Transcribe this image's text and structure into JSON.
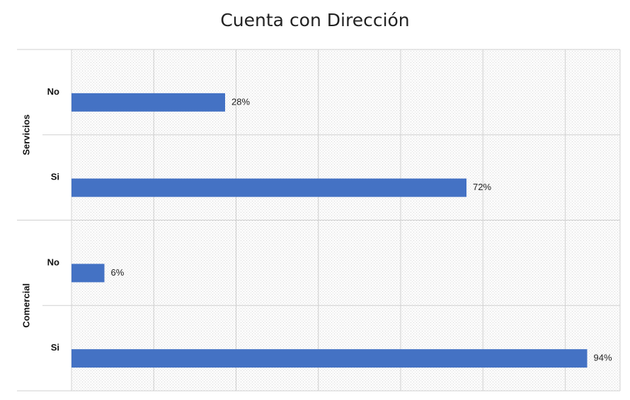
{
  "chart_data": {
    "type": "bar",
    "orientation": "horizontal",
    "title": "Cuenta con Dirección",
    "xlim": [
      0,
      100
    ],
    "grid": true,
    "bar_color": "#4472C4",
    "groups": [
      {
        "name": "Servicios",
        "items": [
          {
            "category": "No",
            "value": 28,
            "label": "28%"
          },
          {
            "category": "Si",
            "value": 72,
            "label": "72%"
          }
        ]
      },
      {
        "name": "Comercial",
        "items": [
          {
            "category": "No",
            "value": 6,
            "label": "6%"
          },
          {
            "category": "Si",
            "value": 94,
            "label": "94%"
          }
        ]
      }
    ]
  }
}
